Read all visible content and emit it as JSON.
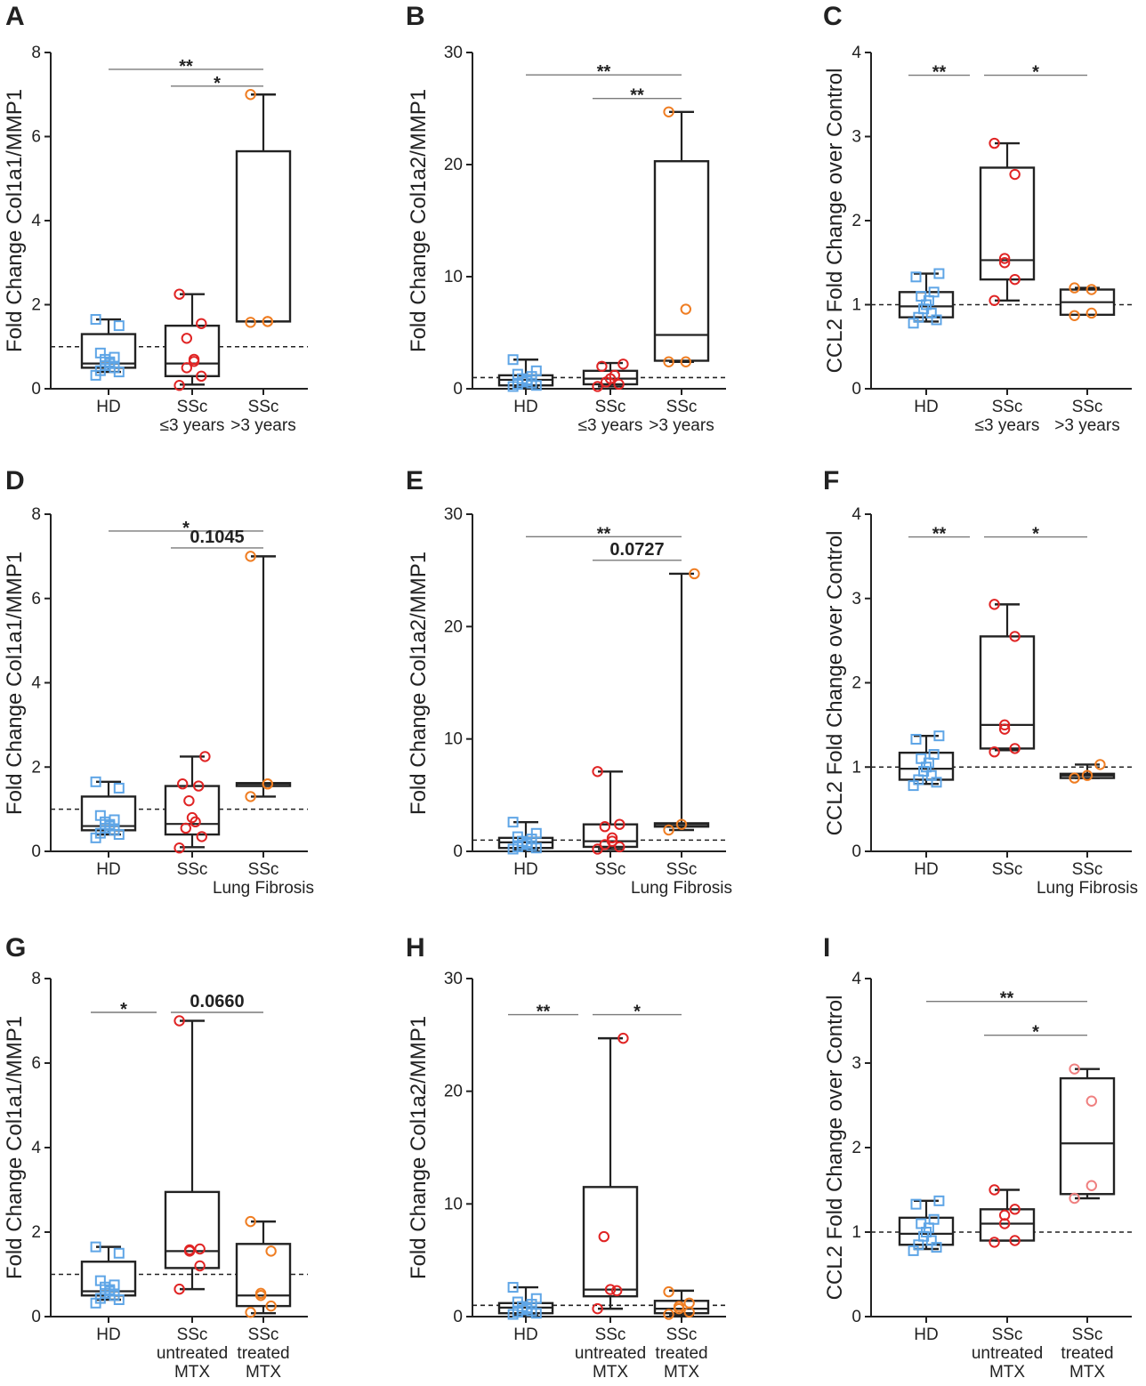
{
  "figure": {
    "colors": {
      "hd": "#5ea5e6",
      "ssc_red": "#e02424",
      "ssc_orange": "#ef7d22",
      "ssc_pink": "#ef8080",
      "ink": "#222222",
      "bracket": "#7a7a7a"
    }
  },
  "chart_data": [
    {
      "panel": "A",
      "type": "box",
      "ylabel": "Fold Change Col1a1/MMP1",
      "ylim": [
        0,
        8
      ],
      "yticks": [
        "0",
        "2",
        "4",
        "6",
        "8"
      ],
      "ref_line": 1,
      "groups": [
        {
          "label": [
            "HD"
          ],
          "marker": "square",
          "color": "hd",
          "box": {
            "min": 0.4,
            "q1": 0.5,
            "median": 0.6,
            "q3": 1.3,
            "max": 1.65
          },
          "points": [
            0.32,
            0.4,
            0.43,
            0.5,
            0.55,
            0.6,
            0.64,
            0.7,
            0.75,
            0.85,
            1.5,
            1.65
          ]
        },
        {
          "label": [
            "SSc",
            "≤3 years"
          ],
          "marker": "circle",
          "color": "ssc_red",
          "box": {
            "min": 0.1,
            "q1": 0.3,
            "median": 0.6,
            "q3": 1.5,
            "max": 2.25
          },
          "points": [
            0.08,
            0.3,
            0.5,
            0.65,
            0.7,
            1.2,
            1.55,
            2.25
          ]
        },
        {
          "label": [
            "SSc",
            ">3 years"
          ],
          "marker": "circle",
          "color": "ssc_orange",
          "box": {
            "min": 1.6,
            "q1": 1.6,
            "median": 1.6,
            "q3": 5.65,
            "max": 7.0
          },
          "points": [
            1.58,
            1.6,
            1.6,
            7.0
          ]
        }
      ],
      "brackets": [
        {
          "from": 0,
          "to": 2,
          "y": 7.6,
          "label": "**"
        },
        {
          "from": 1,
          "to": 2,
          "y": 7.2,
          "label": "*"
        }
      ]
    },
    {
      "panel": "B",
      "type": "box",
      "ylabel": "Fold Change Col1a2/MMP1",
      "ylim": [
        0,
        30
      ],
      "yticks": [
        "0",
        "10",
        "20",
        "30"
      ],
      "ref_line": 1,
      "groups": [
        {
          "label": [
            "HD"
          ],
          "marker": "square",
          "color": "hd",
          "box": {
            "min": 0.1,
            "q1": 0.3,
            "median": 0.8,
            "q3": 1.2,
            "max": 2.6
          },
          "points": [
            0.2,
            0.3,
            0.4,
            0.5,
            0.6,
            0.7,
            0.8,
            0.9,
            1.1,
            1.3,
            1.6,
            2.6
          ]
        },
        {
          "label": [
            "SSc",
            "≤3 years"
          ],
          "marker": "circle",
          "color": "ssc_red",
          "box": {
            "min": 0.2,
            "q1": 0.4,
            "median": 0.9,
            "q3": 1.6,
            "max": 2.3
          },
          "points": [
            0.2,
            0.4,
            0.6,
            0.9,
            1.2,
            2.0,
            2.2
          ]
        },
        {
          "label": [
            "SSc",
            ">3 years"
          ],
          "marker": "circle",
          "color": "ssc_orange",
          "box": {
            "min": 2.4,
            "q1": 2.5,
            "median": 4.8,
            "q3": 20.3,
            "max": 24.7
          },
          "points": [
            2.4,
            2.4,
            7.1,
            24.7
          ]
        }
      ],
      "brackets": [
        {
          "from": 0,
          "to": 2,
          "y": 28.0,
          "label": "**"
        },
        {
          "from": 1,
          "to": 2,
          "y": 25.9,
          "label": "**"
        }
      ]
    },
    {
      "panel": "C",
      "type": "box",
      "ylabel": "CCL2 Fold Change over Control",
      "ylim": [
        0,
        4
      ],
      "yticks": [
        "0",
        "1",
        "2",
        "3",
        "4"
      ],
      "ref_line": 1,
      "groups": [
        {
          "label": [
            "HD"
          ],
          "marker": "square",
          "color": "hd",
          "box": {
            "min": 0.8,
            "q1": 0.85,
            "median": 0.98,
            "q3": 1.15,
            "max": 1.37
          },
          "points": [
            0.78,
            0.82,
            0.85,
            0.9,
            0.95,
            1.0,
            1.05,
            1.1,
            1.15,
            1.33,
            1.37
          ]
        },
        {
          "label": [
            "SSc",
            "≤3 years"
          ],
          "marker": "circle",
          "color": "ssc_red",
          "box": {
            "min": 1.05,
            "q1": 1.3,
            "median": 1.53,
            "q3": 2.63,
            "max": 2.92
          },
          "points": [
            1.05,
            1.3,
            1.5,
            1.55,
            2.55,
            2.92
          ]
        },
        {
          "label": [
            "SSc",
            ">3 years"
          ],
          "marker": "circle",
          "color": "ssc_orange",
          "box": {
            "min": 0.88,
            "q1": 0.88,
            "median": 1.03,
            "q3": 1.18,
            "max": 1.2
          },
          "points": [
            0.87,
            0.9,
            1.18,
            1.2
          ]
        }
      ],
      "brackets": [
        {
          "from": 0,
          "to": 1,
          "y": 3.73,
          "label": "**"
        },
        {
          "from": 1,
          "to": 2,
          "y": 3.73,
          "label": "*"
        }
      ]
    },
    {
      "panel": "D",
      "type": "box",
      "ylabel": "Fold Change Col1a1/MMP1",
      "ylim": [
        0,
        8
      ],
      "yticks": [
        "0",
        "2",
        "4",
        "6",
        "8"
      ],
      "ref_line": 1,
      "groups": [
        {
          "label": [
            "HD"
          ],
          "marker": "square",
          "color": "hd",
          "box": {
            "min": 0.4,
            "q1": 0.5,
            "median": 0.6,
            "q3": 1.3,
            "max": 1.65
          },
          "points": [
            0.32,
            0.4,
            0.43,
            0.5,
            0.55,
            0.6,
            0.64,
            0.7,
            0.75,
            0.85,
            1.5,
            1.65
          ]
        },
        {
          "label": [
            "SSc"
          ],
          "marker": "circle",
          "color": "ssc_red",
          "box": {
            "min": 0.1,
            "q1": 0.4,
            "median": 0.65,
            "q3": 1.55,
            "max": 2.25
          },
          "points": [
            0.08,
            0.35,
            0.55,
            0.7,
            0.8,
            1.2,
            1.55,
            1.6,
            2.25
          ]
        },
        {
          "label": [
            "SSc",
            "Lung Fibrosis"
          ],
          "marker": "circle",
          "color": "ssc_orange",
          "box": {
            "min": 1.3,
            "q1": 1.55,
            "median": 1.6,
            "q3": 1.62,
            "max": 7.0
          },
          "points": [
            1.3,
            1.6,
            1.6,
            7.0
          ]
        }
      ],
      "brackets": [
        {
          "from": 0,
          "to": 2,
          "y": 7.6,
          "label": "*"
        },
        {
          "from": 1,
          "to": 2,
          "y": 7.2,
          "label": "0.1045"
        }
      ]
    },
    {
      "panel": "E",
      "type": "box",
      "ylabel": "Fold Change Col1a2/MMP1",
      "ylim": [
        0,
        30
      ],
      "yticks": [
        "0",
        "10",
        "20",
        "30"
      ],
      "ref_line": 1,
      "groups": [
        {
          "label": [
            "HD"
          ],
          "marker": "square",
          "color": "hd",
          "box": {
            "min": 0.1,
            "q1": 0.3,
            "median": 0.8,
            "q3": 1.2,
            "max": 2.6
          },
          "points": [
            0.2,
            0.3,
            0.4,
            0.5,
            0.6,
            0.7,
            0.8,
            0.9,
            1.1,
            1.3,
            1.6,
            2.6
          ]
        },
        {
          "label": [
            "SSc"
          ],
          "marker": "circle",
          "color": "ssc_red",
          "box": {
            "min": 0.2,
            "q1": 0.4,
            "median": 0.9,
            "q3": 2.4,
            "max": 7.1
          },
          "points": [
            0.2,
            0.4,
            0.6,
            0.9,
            1.2,
            2.2,
            2.4,
            7.1
          ]
        },
        {
          "label": [
            "SSc",
            "Lung Fibrosis"
          ],
          "marker": "circle",
          "color": "ssc_orange",
          "box": {
            "min": 1.9,
            "q1": 2.2,
            "median": 2.4,
            "q3": 2.5,
            "max": 24.7
          },
          "points": [
            1.9,
            2.4,
            24.7
          ]
        }
      ],
      "brackets": [
        {
          "from": 0,
          "to": 2,
          "y": 28.0,
          "label": "**"
        },
        {
          "from": 1,
          "to": 2,
          "y": 25.9,
          "label": "0.0727"
        }
      ]
    },
    {
      "panel": "F",
      "type": "box",
      "ylabel": "CCL2 Fold Change over Control",
      "ylim": [
        0,
        4
      ],
      "yticks": [
        "0",
        "1",
        "2",
        "3",
        "4"
      ],
      "ref_line": 1,
      "groups": [
        {
          "label": [
            "HD"
          ],
          "marker": "square",
          "color": "hd",
          "box": {
            "min": 0.8,
            "q1": 0.85,
            "median": 0.98,
            "q3": 1.17,
            "max": 1.37
          },
          "points": [
            0.78,
            0.82,
            0.85,
            0.9,
            0.95,
            1.0,
            1.05,
            1.1,
            1.15,
            1.33,
            1.37
          ]
        },
        {
          "label": [
            "SSc"
          ],
          "marker": "circle",
          "color": "ssc_red",
          "box": {
            "min": 1.2,
            "q1": 1.22,
            "median": 1.5,
            "q3": 2.55,
            "max": 2.93
          },
          "points": [
            1.18,
            1.22,
            1.45,
            1.5,
            2.55,
            2.93
          ]
        },
        {
          "label": [
            "SSc",
            "Lung Fibrosis"
          ],
          "marker": "circle",
          "color": "ssc_orange",
          "box": {
            "min": 0.87,
            "q1": 0.87,
            "median": 0.9,
            "q3": 0.92,
            "max": 1.03
          },
          "points": [
            0.87,
            0.9,
            1.03
          ]
        }
      ],
      "brackets": [
        {
          "from": 0,
          "to": 1,
          "y": 3.73,
          "label": "**"
        },
        {
          "from": 1,
          "to": 2,
          "y": 3.73,
          "label": "*"
        }
      ]
    },
    {
      "panel": "G",
      "type": "box",
      "ylabel": "Fold Change Col1a1/MMP1",
      "ylim": [
        0,
        8
      ],
      "yticks": [
        "0",
        "2",
        "4",
        "6",
        "8"
      ],
      "ref_line": 1,
      "groups": [
        {
          "label": [
            "HD"
          ],
          "marker": "square",
          "color": "hd",
          "box": {
            "min": 0.4,
            "q1": 0.5,
            "median": 0.6,
            "q3": 1.3,
            "max": 1.65
          },
          "points": [
            0.32,
            0.4,
            0.43,
            0.5,
            0.55,
            0.6,
            0.64,
            0.7,
            0.75,
            0.85,
            1.5,
            1.65
          ]
        },
        {
          "label": [
            "SSc",
            "untreated",
            "MTX"
          ],
          "marker": "circle",
          "color": "ssc_red",
          "box": {
            "min": 0.65,
            "q1": 1.15,
            "median": 1.55,
            "q3": 2.95,
            "max": 7.0
          },
          "points": [
            0.65,
            1.2,
            1.55,
            1.58,
            1.6,
            7.0
          ]
        },
        {
          "label": [
            "SSc",
            "treated",
            "MTX"
          ],
          "marker": "circle",
          "color": "ssc_orange",
          "box": {
            "min": 0.08,
            "q1": 0.25,
            "median": 0.5,
            "q3": 1.72,
            "max": 2.25
          },
          "points": [
            0.1,
            0.25,
            0.5,
            0.55,
            1.55,
            2.25
          ]
        }
      ],
      "brackets": [
        {
          "from": 0,
          "to": 1,
          "y": 7.2,
          "label": "*"
        },
        {
          "from": 1,
          "to": 2,
          "y": 7.2,
          "label": "0.0660"
        }
      ]
    },
    {
      "panel": "H",
      "type": "box",
      "ylabel": "Fold Change Col1a2/MMP1",
      "ylim": [
        0,
        30
      ],
      "yticks": [
        "0",
        "10",
        "20",
        "30"
      ],
      "ref_line": 1,
      "groups": [
        {
          "label": [
            "HD"
          ],
          "marker": "square",
          "color": "hd",
          "box": {
            "min": 0.1,
            "q1": 0.3,
            "median": 0.8,
            "q3": 1.2,
            "max": 2.6
          },
          "points": [
            0.2,
            0.3,
            0.4,
            0.5,
            0.6,
            0.7,
            0.8,
            0.9,
            1.1,
            1.3,
            1.6,
            2.6
          ]
        },
        {
          "label": [
            "SSc",
            "untreated",
            "MTX"
          ],
          "marker": "circle",
          "color": "ssc_red",
          "box": {
            "min": 0.7,
            "q1": 1.8,
            "median": 2.4,
            "q3": 11.5,
            "max": 24.7
          },
          "points": [
            0.7,
            2.3,
            2.4,
            7.1,
            24.7
          ]
        },
        {
          "label": [
            "SSc",
            "treated",
            "MTX"
          ],
          "marker": "circle",
          "color": "ssc_orange",
          "box": {
            "min": 0.1,
            "q1": 0.3,
            "median": 0.7,
            "q3": 1.4,
            "max": 2.3
          },
          "points": [
            0.2,
            0.4,
            0.7,
            0.9,
            1.2,
            2.2
          ]
        }
      ],
      "brackets": [
        {
          "from": 0,
          "to": 1,
          "y": 26.8,
          "label": "**"
        },
        {
          "from": 1,
          "to": 2,
          "y": 26.8,
          "label": "*"
        }
      ]
    },
    {
      "panel": "I",
      "type": "box",
      "ylabel": "CCL2 Fold Change over Control",
      "ylim": [
        0,
        4
      ],
      "yticks": [
        "0",
        "1",
        "2",
        "3",
        "4"
      ],
      "ref_line": 1,
      "groups": [
        {
          "label": [
            "HD"
          ],
          "marker": "square",
          "color": "hd",
          "box": {
            "min": 0.8,
            "q1": 0.85,
            "median": 0.98,
            "q3": 1.17,
            "max": 1.37
          },
          "points": [
            0.78,
            0.82,
            0.85,
            0.9,
            0.95,
            1.0,
            1.05,
            1.1,
            1.15,
            1.33,
            1.37
          ]
        },
        {
          "label": [
            "SSc",
            "untreated",
            "MTX"
          ],
          "marker": "circle",
          "color": "ssc_red",
          "box": {
            "min": 0.9,
            "q1": 0.9,
            "median": 1.1,
            "q3": 1.27,
            "max": 1.5
          },
          "points": [
            0.88,
            0.9,
            1.1,
            1.2,
            1.27,
            1.5
          ]
        },
        {
          "label": [
            "SSc",
            "treated",
            "MTX"
          ],
          "marker": "circle",
          "color": "ssc_pink",
          "box": {
            "min": 1.4,
            "q1": 1.45,
            "median": 2.05,
            "q3": 2.82,
            "max": 2.93
          },
          "points": [
            1.4,
            1.55,
            2.55,
            2.93
          ]
        }
      ],
      "brackets": [
        {
          "from": 0,
          "to": 2,
          "y": 3.73,
          "label": "**"
        },
        {
          "from": 1,
          "to": 2,
          "y": 3.33,
          "label": "*"
        }
      ]
    }
  ]
}
